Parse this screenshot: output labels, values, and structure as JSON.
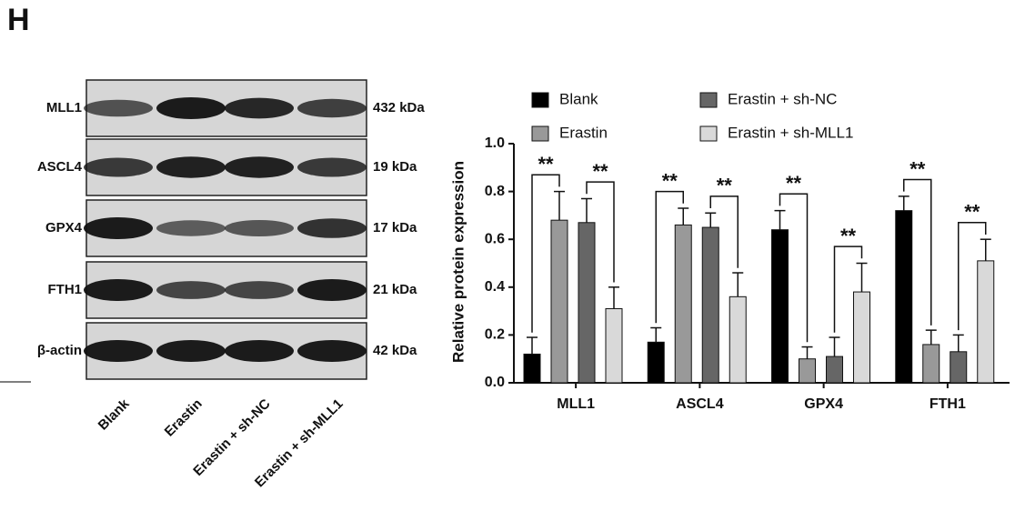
{
  "panel_label": "H",
  "blot": {
    "rows": [
      {
        "protein": "MLL1",
        "size": "432 kDa"
      },
      {
        "protein": "ASCL4",
        "size": "19 kDa"
      },
      {
        "protein": "GPX4",
        "size": "17 kDa"
      },
      {
        "protein": "FTH1",
        "size": "21 kDa"
      },
      {
        "protein": "β-actin",
        "size": "42 kDa"
      }
    ],
    "lanes": [
      "Blank",
      "Erastin",
      "Erastin + sh-NC",
      "Erastin + sh-MLL1"
    ]
  },
  "chart_data": {
    "type": "bar",
    "y_label": "Relative protein expression",
    "categories": [
      "MLL1",
      "ASCL4",
      "GPX4",
      "FTH1"
    ],
    "series": [
      {
        "name": "Blank",
        "color": "#000000",
        "values": [
          0.12,
          0.17,
          0.64,
          0.72
        ],
        "errors": [
          0.07,
          0.06,
          0.08,
          0.06
        ]
      },
      {
        "name": "Erastin",
        "color": "#999999",
        "values": [
          0.68,
          0.66,
          0.1,
          0.16
        ],
        "errors": [
          0.12,
          0.07,
          0.05,
          0.06
        ]
      },
      {
        "name": "Erastin + sh-NC",
        "color": "#666666",
        "values": [
          0.67,
          0.65,
          0.11,
          0.13
        ],
        "errors": [
          0.1,
          0.06,
          0.08,
          0.07
        ]
      },
      {
        "name": "Erastin + sh-MLL1",
        "color": "#d9d9d9",
        "values": [
          0.31,
          0.36,
          0.38,
          0.51
        ],
        "errors": [
          0.09,
          0.1,
          0.12,
          0.09
        ]
      }
    ],
    "ylim": [
      0,
      1.0
    ],
    "yticks": [
      {
        "value": 0,
        "label": "0.0"
      },
      0.2,
      0.4,
      0.6,
      0.8,
      {
        "value": 1.0,
        "label": "1.0"
      }
    ],
    "annotations": [
      {
        "text": "**",
        "category": "MLL1",
        "between": [
          "Blank",
          "Erastin"
        ]
      },
      {
        "text": "**",
        "category": "MLL1",
        "between": [
          "Erastin + sh-NC",
          "Erastin + sh-MLL1"
        ]
      },
      {
        "text": "**",
        "category": "ASCL4",
        "between": [
          "Blank",
          "Erastin"
        ]
      },
      {
        "text": "**",
        "category": "ASCL4",
        "between": [
          "Erastin + sh-NC",
          "Erastin + sh-MLL1"
        ]
      },
      {
        "text": "**",
        "category": "GPX4",
        "between": [
          "Blank",
          "Erastin"
        ]
      },
      {
        "text": "**",
        "category": "GPX4",
        "between": [
          "Erastin + sh-NC",
          "Erastin + sh-MLL1"
        ]
      },
      {
        "text": "**",
        "category": "FTH1",
        "between": [
          "Blank",
          "Erastin"
        ]
      },
      {
        "text": "**",
        "category": "FTH1",
        "between": [
          "Erastin + sh-NC",
          "Erastin + sh-MLL1"
        ]
      }
    ]
  }
}
